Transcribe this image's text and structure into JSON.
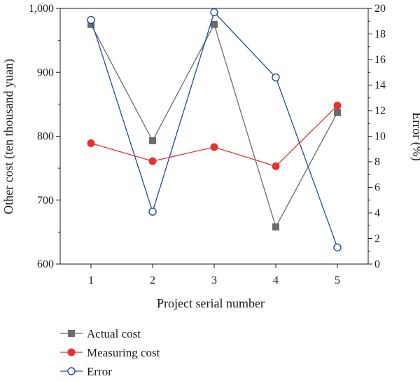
{
  "chart_data": {
    "type": "line",
    "x": [
      1,
      2,
      3,
      4,
      5
    ],
    "xlabel": "Project serial number",
    "ylabel": "Other cost (ten thousand yuan)",
    "y2label": "Error (%)",
    "xlim": [
      0.5,
      5.5
    ],
    "ylim": [
      600,
      1000
    ],
    "y2lim": [
      0,
      20
    ],
    "xticks": [
      "1",
      "2",
      "3",
      "4",
      "5"
    ],
    "yticks": [
      "600",
      "700",
      "800",
      "900",
      "1,000"
    ],
    "y2ticks": [
      "0",
      "2",
      "4",
      "6",
      "8",
      "10",
      "12",
      "14",
      "16",
      "18",
      "20"
    ],
    "grid": false,
    "legend_position": "bottom",
    "series": [
      {
        "name": "Actual cost",
        "axis": "left",
        "color": "#6b6b6b",
        "marker": "square",
        "values": [
          975,
          793,
          975,
          658,
          837
        ]
      },
      {
        "name": "Measuring cost",
        "axis": "left",
        "color": "#e8302e",
        "marker": "circle-filled",
        "values": [
          789,
          761,
          783,
          753,
          848
        ]
      },
      {
        "name": "Error",
        "axis": "right",
        "color": "#2547a6",
        "marker": "circle-open",
        "values": [
          19.1,
          4.1,
          19.7,
          14.6,
          1.3
        ]
      }
    ]
  }
}
